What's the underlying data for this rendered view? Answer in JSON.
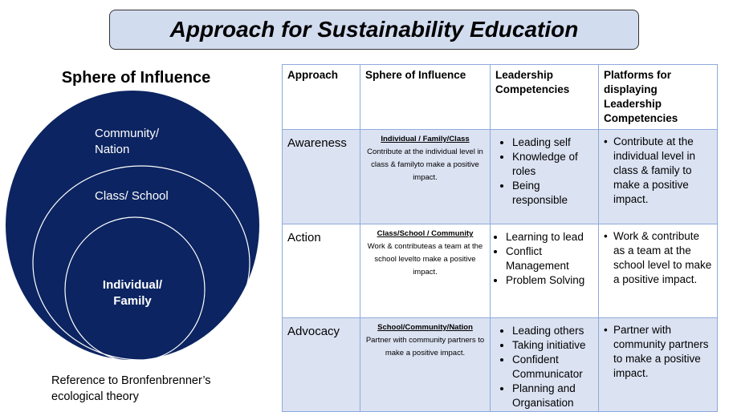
{
  "title": "Approach for Sustainability Education",
  "sphere": {
    "heading": "Sphere of Influence",
    "outer_label": "Community/\nNation",
    "middle_label": "Class/ School",
    "inner_label": "Individual/\nFamily",
    "colors": {
      "fill": "#0c2461",
      "ring": "#ffffff"
    }
  },
  "reference": "Reference to Bronfenbrenner’s ecological theory",
  "table": {
    "headers": [
      "Approach",
      "Sphere of Influence",
      "Leadership Competencies",
      "Platforms for displaying Leadership Competencies"
    ],
    "rows": [
      {
        "approach": "Awareness",
        "sphere_head": "Individual / Family/Class",
        "sphere_text": "Contribute at the individual level in class & familyto make a positive impact.",
        "competencies": [
          "Leading self",
          "Knowledge of roles",
          "Being responsible"
        ],
        "platform": "Contribute at the individual level in class & family to make a positive impact."
      },
      {
        "approach": "Action",
        "sphere_head": "Class/School / Community",
        "sphere_text": "Work & contributeas a team at the school levelto make a positive impact.",
        "competencies": [
          "Learning to lead",
          "Conflict Management",
          "Problem Solving"
        ],
        "platform": "Work & contribute as a team at the school level to make a positive impact."
      },
      {
        "approach": "Advocacy",
        "sphere_head": "School/Community/Nation",
        "sphere_text": "Partner with community partners to make a positive impact.",
        "competencies": [
          "Leading others",
          "Taking initiative",
          "Confident Communicator",
          "Planning and Organisation"
        ],
        "platform": "Partner with community partners to make a positive impact."
      }
    ],
    "colors": {
      "border": "#8faadc",
      "shaded_row": "#dbe2f2"
    }
  }
}
